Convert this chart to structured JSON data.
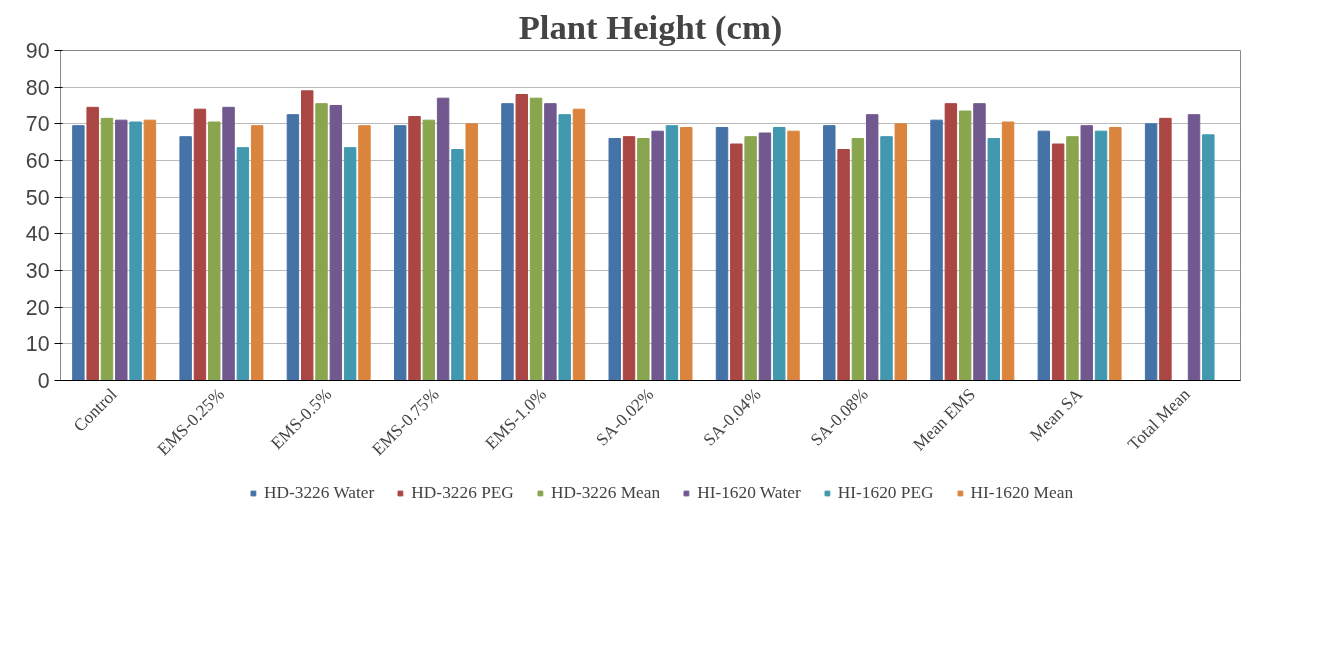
{
  "chart_data": {
    "type": "bar",
    "title": "Plant Height (cm)",
    "categories": [
      "Control",
      "EMS-0.25%",
      "EMS-0.5%",
      "EMS-0.75%",
      "EMS-1.0%",
      "SA-0.02%",
      "SA-0.04%",
      "SA-0.08%",
      "Mean EMS",
      "Mean SA",
      "Total Mean"
    ],
    "series": [
      {
        "name": "HD-3226 Water",
        "color": "#4572a7",
        "values": [
          69.5,
          66.5,
          72.5,
          69.5,
          75.5,
          66,
          69,
          69.5,
          71,
          68,
          70
        ]
      },
      {
        "name": "HD-3226 PEG",
        "color": "#aa4643",
        "values": [
          74.5,
          74,
          79,
          72,
          78,
          66.5,
          64.5,
          63,
          75.5,
          64.5,
          71.5
        ]
      },
      {
        "name": "HD-3226 Mean",
        "color": "#89a54e",
        "values": [
          71.5,
          70.5,
          75.5,
          71,
          77,
          66,
          66.5,
          66,
          73.5,
          66.5,
          null
        ]
      },
      {
        "name": "HI-1620 Water",
        "color": "#71588f",
        "values": [
          71,
          74.5,
          75,
          77,
          75.5,
          68,
          67.5,
          72.5,
          75.5,
          69.5,
          72.5
        ]
      },
      {
        "name": "HI-1620 PEG",
        "color": "#4198af",
        "values": [
          70.5,
          63.5,
          63.5,
          63,
          72.5,
          69.5,
          69,
          66.5,
          66,
          68,
          67
        ]
      },
      {
        "name": "HI-1620 Mean",
        "color": "#db843d",
        "values": [
          71,
          69.5,
          69.5,
          70,
          74,
          69,
          68,
          70,
          70.5,
          69,
          null
        ]
      }
    ],
    "ylim": [
      0,
      90
    ],
    "yticks": [
      0,
      10,
      20,
      30,
      40,
      50,
      60,
      70,
      80,
      90
    ],
    "grid": "y",
    "legend": "bottom"
  }
}
